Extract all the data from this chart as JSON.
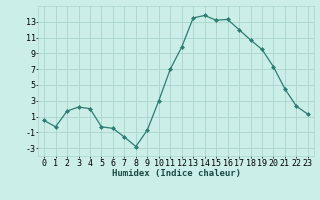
{
  "x": [
    0,
    1,
    2,
    3,
    4,
    5,
    6,
    7,
    8,
    9,
    10,
    11,
    12,
    13,
    14,
    15,
    16,
    17,
    18,
    19,
    20,
    21,
    22,
    23
  ],
  "y": [
    0.5,
    -0.3,
    1.7,
    2.2,
    2.0,
    -0.3,
    -0.5,
    -1.6,
    -2.8,
    -0.7,
    3.0,
    7.0,
    9.8,
    13.5,
    13.8,
    13.2,
    13.3,
    12.0,
    10.7,
    9.5,
    7.3,
    4.5,
    2.3,
    1.3
  ],
  "line_color": "#2d7d72",
  "marker": "D",
  "marker_size": 2.0,
  "bg_color": "#cceee8",
  "grid_color": "#aad4cc",
  "xlabel": "Humidex (Indice chaleur)",
  "ylim": [
    -4,
    15
  ],
  "xlim": [
    -0.5,
    23.5
  ],
  "yticks": [
    -3,
    -1,
    1,
    3,
    5,
    7,
    9,
    11,
    13
  ],
  "xticks": [
    0,
    1,
    2,
    3,
    4,
    5,
    6,
    7,
    8,
    9,
    10,
    11,
    12,
    13,
    14,
    15,
    16,
    17,
    18,
    19,
    20,
    21,
    22,
    23
  ],
  "xlabel_fontsize": 6.5,
  "tick_fontsize": 6.0,
  "figsize": [
    3.2,
    2.0
  ],
  "dpi": 100
}
